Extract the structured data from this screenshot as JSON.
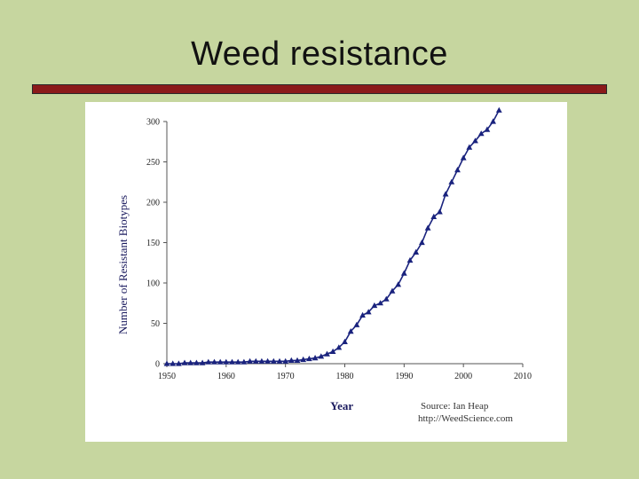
{
  "slide": {
    "title": "Weed  resistance",
    "colors": {
      "background": "#c6d69f",
      "title_bar": "#8b1a1a",
      "series": "#1a237e"
    }
  },
  "chart_data": {
    "type": "line",
    "marker": "triangle",
    "xlabel": "Year",
    "ylabel": "Number of Resistant Biotypes",
    "xlim": [
      1950,
      2010
    ],
    "ylim": [
      0,
      300
    ],
    "x_ticks": [
      "1950",
      "1960",
      "1970",
      "1980",
      "1990",
      "2000",
      "2010"
    ],
    "y_ticks": [
      "0",
      "50",
      "100",
      "150",
      "200",
      "250",
      "300"
    ],
    "source_lines": [
      "Source: Ian Heap",
      "http://WeedScience.com"
    ],
    "series": [
      {
        "x": [
          1950,
          1951,
          1952,
          1953,
          1954,
          1955,
          1956,
          1957,
          1958,
          1959,
          1960,
          1961,
          1962,
          1963,
          1964,
          1965,
          1966,
          1967,
          1968,
          1969,
          1970,
          1971,
          1972,
          1973,
          1974,
          1975,
          1976,
          1977,
          1978,
          1979,
          1980,
          1981,
          1982,
          1983,
          1984,
          1985,
          1986,
          1987,
          1988,
          1989,
          1990,
          1991,
          1992,
          1993,
          1994,
          1995,
          1996,
          1997,
          1998,
          1999,
          2000,
          2001,
          2002,
          2003,
          2004,
          2005,
          2006
        ],
        "y": [
          0,
          0,
          0,
          1,
          1,
          1,
          1,
          2,
          2,
          2,
          2,
          2,
          2,
          2,
          3,
          3,
          3,
          3,
          3,
          3,
          3,
          4,
          4,
          5,
          6,
          7,
          9,
          12,
          15,
          20,
          27,
          40,
          48,
          60,
          64,
          72,
          75,
          80,
          90,
          98,
          112,
          128,
          138,
          150,
          168,
          182,
          188,
          210,
          225,
          240,
          255,
          268,
          276,
          285,
          290,
          300,
          314
        ]
      }
    ]
  }
}
